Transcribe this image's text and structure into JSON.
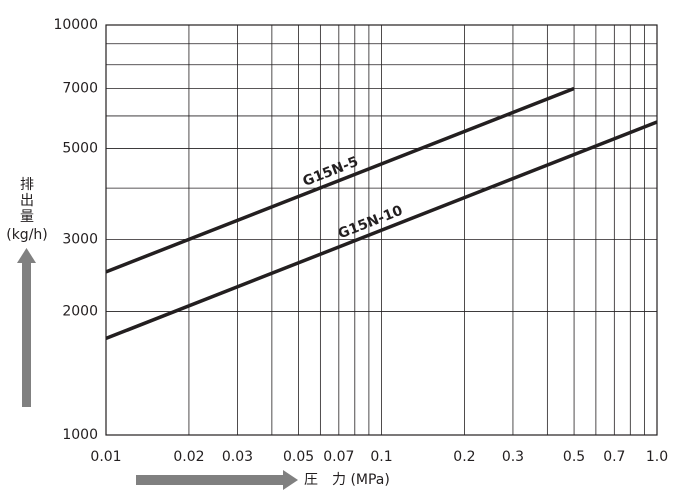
{
  "chart_data": {
    "type": "line",
    "ylabel": [
      "排",
      "出",
      "量",
      "(kg/h)"
    ],
    "xlabel": "圧　力 (MPa)",
    "log_x": true,
    "log_y": true,
    "grid": true,
    "xlim": [
      0.01,
      1
    ],
    "xticks": [
      0.01,
      0.02,
      0.03,
      0.05,
      0.07,
      0.1,
      0.2,
      0.3,
      0.5,
      0.7,
      {
        "value": 1,
        "label": "1.0"
      }
    ],
    "x_minor_grid": [
      0.04,
      0.06,
      0.08,
      0.09,
      0.4,
      0.6,
      0.8,
      0.9
    ],
    "ylim": [
      1000,
      10000
    ],
    "yticks": [
      1000,
      2000,
      3000,
      5000,
      7000,
      10000
    ],
    "y_minor_grid": [
      4000,
      6000,
      8000,
      9000
    ],
    "series": [
      {
        "name": "G15N-5",
        "color": "#231f20",
        "x": [
          0.01,
          0.5
        ],
        "values": [
          2500,
          7000
        ]
      },
      {
        "name": "G15N-10",
        "color": "#231f20",
        "x": [
          0.01,
          1
        ],
        "values": [
          1720,
          5800
        ]
      }
    ]
  }
}
